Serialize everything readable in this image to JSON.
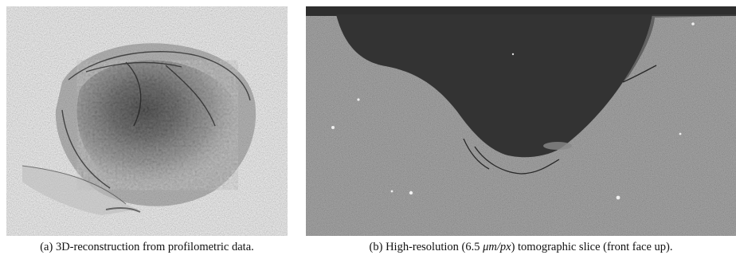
{
  "figure": {
    "panel_a": {
      "label": "(a)",
      "caption_text": "3D-reconstruction from profilometric data."
    },
    "panel_b": {
      "label": "(b)",
      "caption_before": "High-resolution (6.5 ",
      "caption_math": "μm/px",
      "caption_after": ") tomographic slice (front face up)."
    }
  }
}
